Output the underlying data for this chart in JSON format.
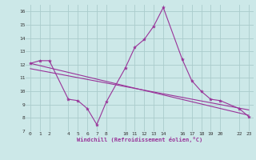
{
  "xlabel": "Windchill (Refroidissement éolien,°C)",
  "background_color": "#cce8e8",
  "line_color": "#993399",
  "grid_color": "#aacccc",
  "x_ticks": [
    0,
    1,
    2,
    4,
    5,
    6,
    7,
    8,
    10,
    11,
    12,
    13,
    14,
    16,
    17,
    18,
    19,
    20,
    22,
    23
  ],
  "ylim": [
    7,
    16.5
  ],
  "xlim": [
    -0.5,
    23.5
  ],
  "y_ticks": [
    7,
    8,
    9,
    10,
    11,
    12,
    13,
    14,
    15,
    16
  ],
  "line1_x": [
    0,
    1,
    2,
    4,
    5,
    6,
    7,
    8,
    10,
    11,
    12,
    13,
    14,
    16,
    17,
    18,
    19,
    20,
    22,
    23
  ],
  "line1_y": [
    12.1,
    12.3,
    12.3,
    9.4,
    9.3,
    8.7,
    7.5,
    9.2,
    11.75,
    13.3,
    13.9,
    14.9,
    16.3,
    12.4,
    10.8,
    10.0,
    9.4,
    9.3,
    8.7,
    8.1
  ],
  "line2_x": [
    0,
    23
  ],
  "line2_y": [
    12.1,
    8.2
  ],
  "line3_x": [
    0,
    23
  ],
  "line3_y": [
    11.7,
    8.6
  ]
}
